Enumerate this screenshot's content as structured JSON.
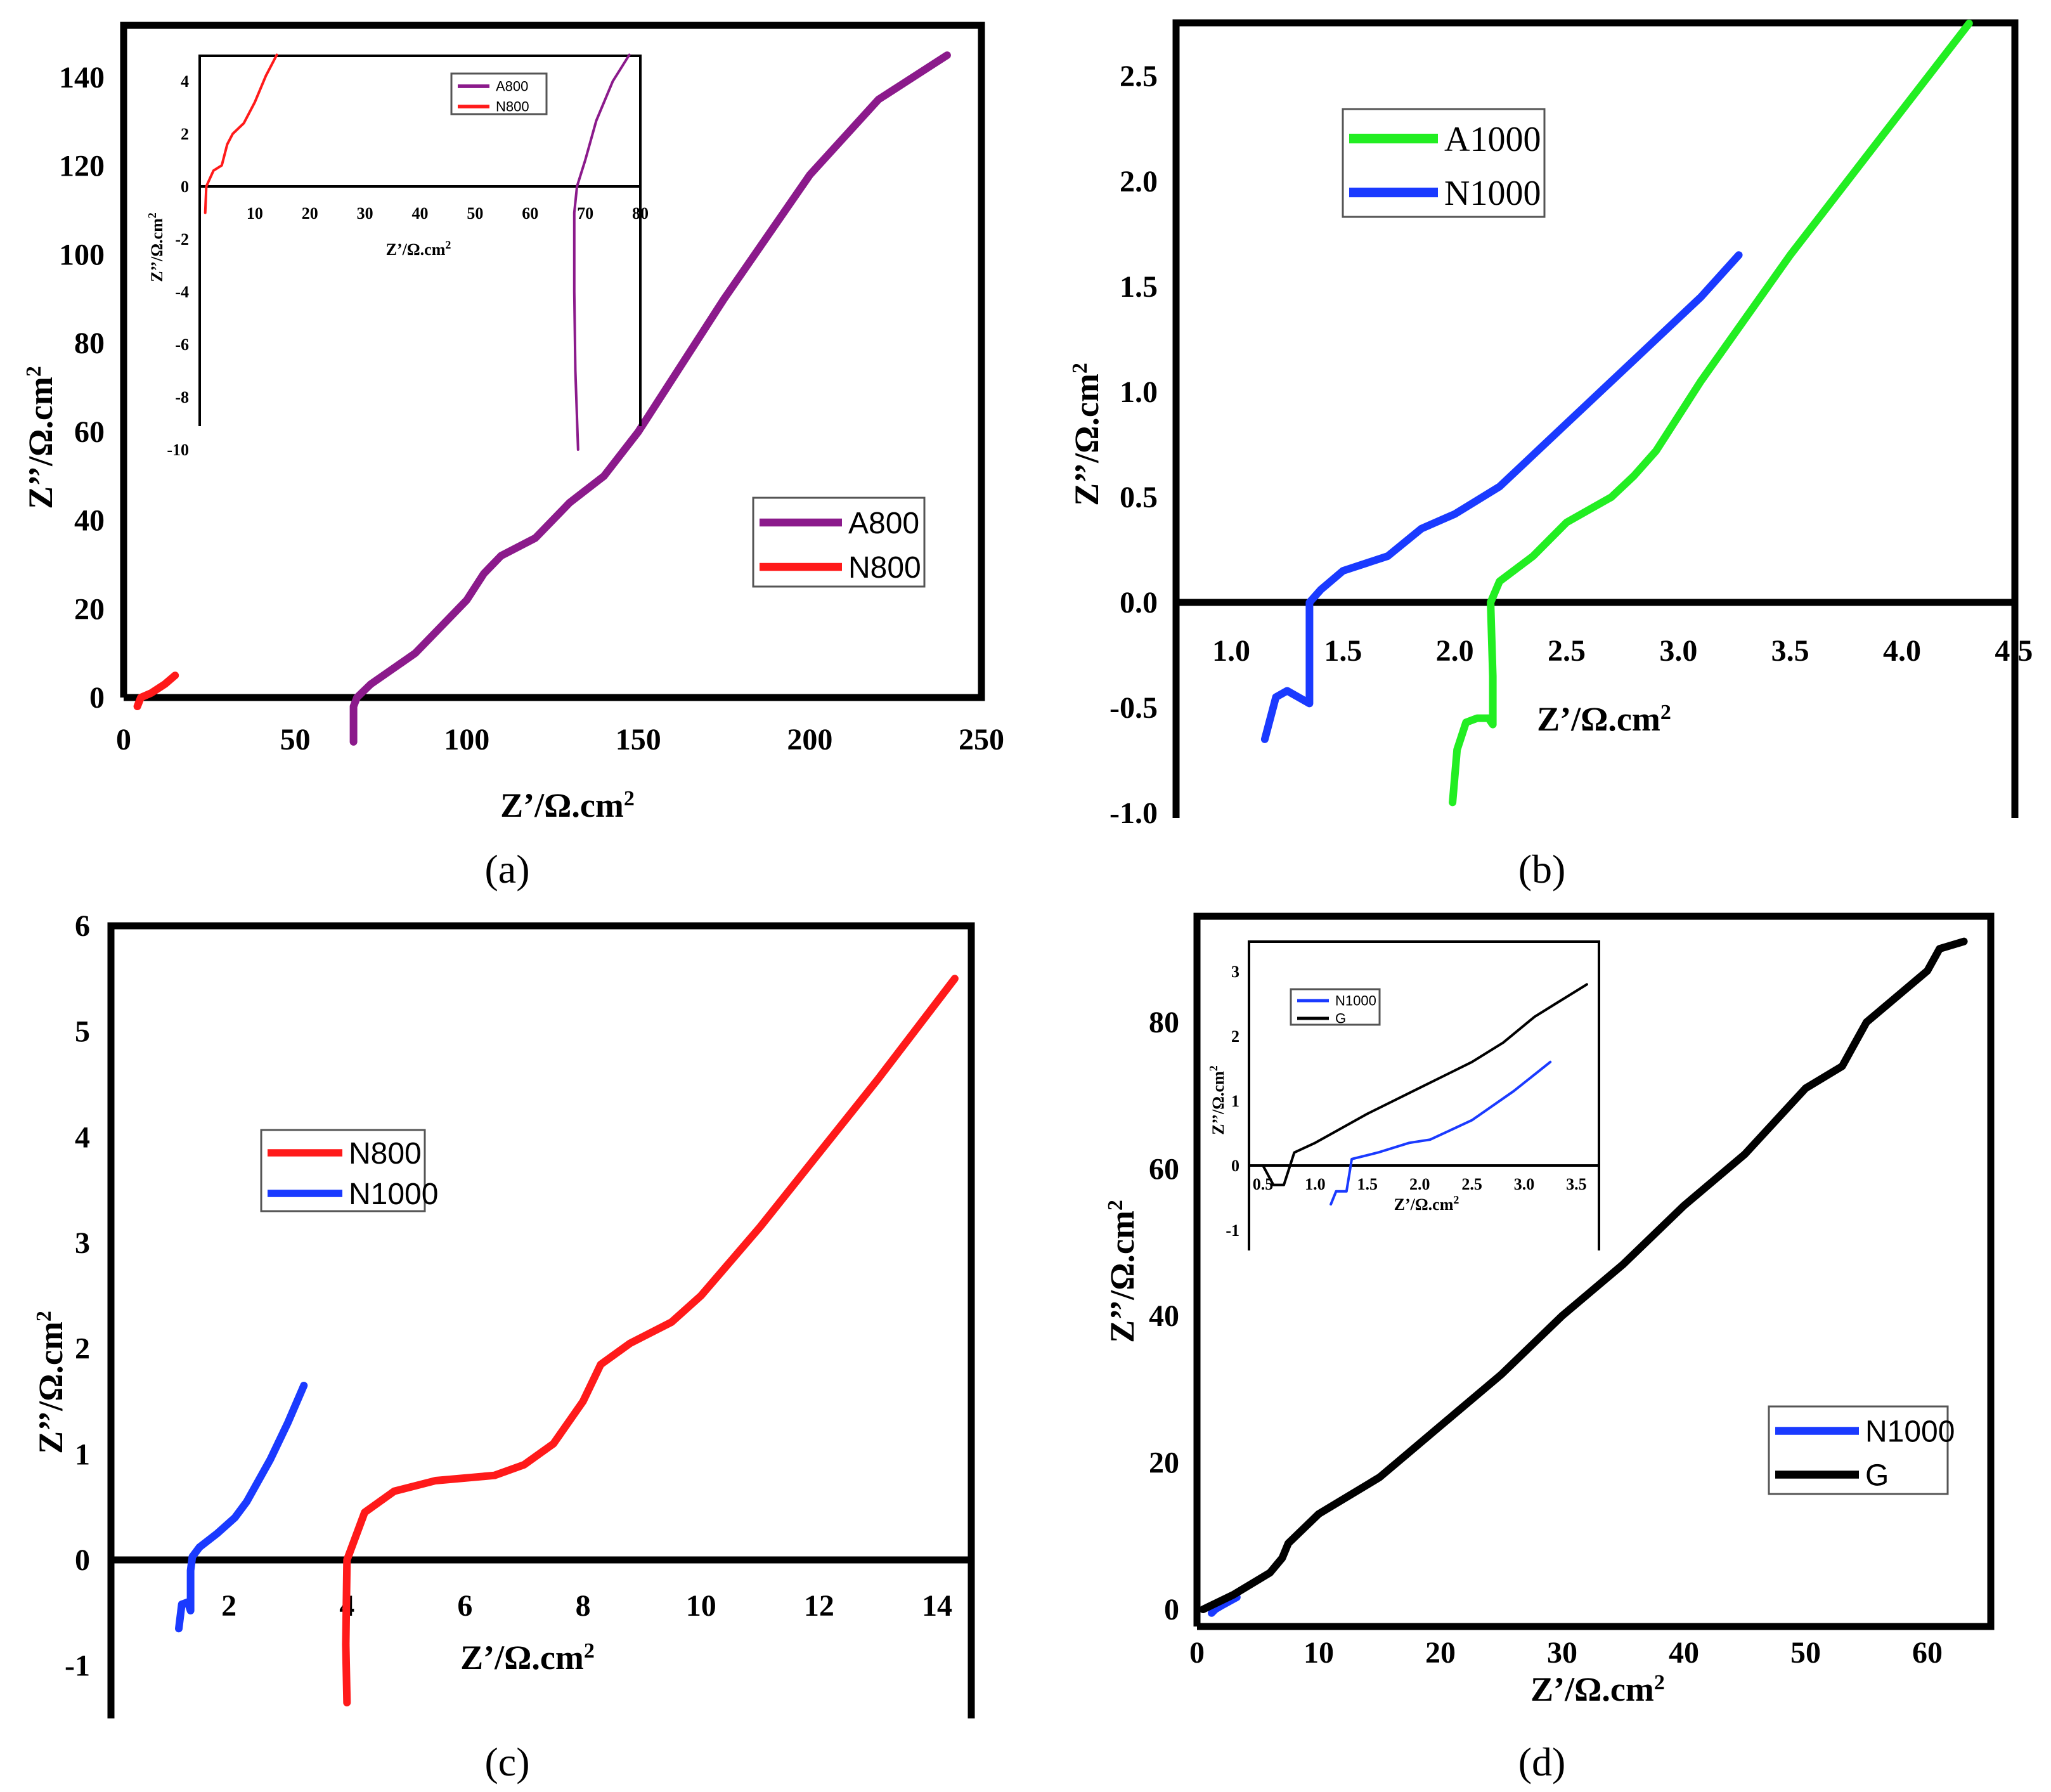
{
  "chart_data": [
    {
      "id": "a",
      "type": "line",
      "panel_label": "(a)",
      "xlabel": "Z’/Ω.cm",
      "ylabel": "Z’’/Ω.cm",
      "unit_exponent": "2",
      "xlim": [
        0,
        250
      ],
      "ylim": [
        0,
        145
      ],
      "x_ticks": [
        "0",
        "50",
        "100",
        "150",
        "200",
        "250"
      ],
      "y_ticks": [
        "0",
        "20",
        "40",
        "60",
        "80",
        "100",
        "120",
        "140"
      ],
      "legend": [
        "A800",
        "N800"
      ],
      "series": [
        {
          "name": "A800",
          "color": "#8b1a8b",
          "points": [
            [
              67,
              -10
            ],
            [
              67,
              -2
            ],
            [
              68,
              0
            ],
            [
              72,
              3
            ],
            [
              85,
              10
            ],
            [
              95,
              18
            ],
            [
              100,
              22
            ],
            [
              105,
              28
            ],
            [
              110,
              32
            ],
            [
              120,
              36
            ],
            [
              130,
              44
            ],
            [
              140,
              50
            ],
            [
              150,
              60
            ],
            [
              175,
              90
            ],
            [
              200,
              118
            ],
            [
              220,
              135
            ],
            [
              240,
              145
            ]
          ]
        },
        {
          "name": "N800",
          "color": "#ff1a1a",
          "points": [
            [
              4,
              -2
            ],
            [
              5,
              0
            ],
            [
              8,
              1
            ],
            [
              12,
              3
            ],
            [
              15,
              5
            ]
          ]
        }
      ],
      "inset": {
        "xlabel": "Z’/Ω.cm",
        "ylabel": "Z’’/Ω.cm",
        "xlim": [
          0,
          80
        ],
        "ylim": [
          -10,
          5
        ],
        "x_ticks": [
          "10",
          "20",
          "30",
          "40",
          "50",
          "60",
          "70",
          "80"
        ],
        "y_ticks": [
          "4",
          "2",
          "0",
          "-2",
          "-4",
          "-6",
          "-8",
          "-10"
        ],
        "legend": [
          "A800",
          "N800"
        ],
        "series": [
          {
            "name": "A800",
            "color": "#8b1a8b",
            "points": [
              [
                68.7,
                -10
              ],
              [
                68.2,
                -7
              ],
              [
                68,
                -4
              ],
              [
                68,
                -2
              ],
              [
                68,
                -1
              ],
              [
                68.5,
                0
              ],
              [
                70,
                1
              ],
              [
                72,
                2.5
              ],
              [
                75,
                4
              ],
              [
                78,
                5
              ]
            ]
          },
          {
            "name": "N800",
            "color": "#ff1a1a",
            "points": [
              [
                1,
                -1
              ],
              [
                1.2,
                0
              ],
              [
                2.5,
                0.6
              ],
              [
                4,
                0.8
              ],
              [
                5,
                1.6
              ],
              [
                6,
                2
              ],
              [
                8,
                2.4
              ],
              [
                10,
                3.2
              ],
              [
                12,
                4.2
              ],
              [
                14,
                5
              ]
            ]
          }
        ]
      }
    },
    {
      "id": "b",
      "type": "line",
      "panel_label": "(b)",
      "xlabel": "Z’/Ω.cm",
      "ylabel": "Z’’/Ω.cm",
      "unit_exponent": "2",
      "xlim": [
        0.75,
        4.5
      ],
      "ylim": [
        -1.0,
        2.75
      ],
      "x_ticks": [
        "1.0",
        "1.5",
        "2.0",
        "2.5",
        "3.0",
        "3.5",
        "4.0",
        "4.5"
      ],
      "y_ticks": [
        "-1.0",
        "-0.5",
        "0.0",
        "0.5",
        "1.0",
        "1.5",
        "2.0",
        "2.5"
      ],
      "legend": [
        "A1000",
        "N1000"
      ],
      "series": [
        {
          "name": "A1000",
          "color": "#22ee22",
          "points": [
            [
              1.99,
              -0.95
            ],
            [
              2.01,
              -0.7
            ],
            [
              2.05,
              -0.57
            ],
            [
              2.1,
              -0.55
            ],
            [
              2.15,
              -0.55
            ],
            [
              2.17,
              -0.58
            ],
            [
              2.17,
              -0.35
            ],
            [
              2.16,
              0.0
            ],
            [
              2.2,
              0.1
            ],
            [
              2.35,
              0.22
            ],
            [
              2.5,
              0.38
            ],
            [
              2.7,
              0.5
            ],
            [
              2.8,
              0.6
            ],
            [
              2.9,
              0.72
            ],
            [
              3.1,
              1.05
            ],
            [
              3.5,
              1.65
            ],
            [
              3.9,
              2.2
            ],
            [
              4.3,
              2.75
            ]
          ]
        },
        {
          "name": "N1000",
          "color": "#1a3aff",
          "points": [
            [
              1.15,
              -0.65
            ],
            [
              1.2,
              -0.45
            ],
            [
              1.25,
              -0.42
            ],
            [
              1.3,
              -0.45
            ],
            [
              1.35,
              -0.48
            ],
            [
              1.35,
              -0.2
            ],
            [
              1.35,
              0.0
            ],
            [
              1.4,
              0.06
            ],
            [
              1.5,
              0.15
            ],
            [
              1.7,
              0.22
            ],
            [
              1.85,
              0.35
            ],
            [
              2.0,
              0.42
            ],
            [
              2.2,
              0.55
            ],
            [
              2.5,
              0.85
            ],
            [
              2.8,
              1.15
            ],
            [
              3.1,
              1.45
            ],
            [
              3.27,
              1.65
            ]
          ]
        }
      ]
    },
    {
      "id": "c",
      "type": "line",
      "panel_label": "(c)",
      "xlabel": "Z’/Ω.cm",
      "ylabel": "Z’’/Ω.cm",
      "unit_exponent": "2",
      "xlim": [
        0,
        15
      ],
      "ylim": [
        -1.4,
        6.0
      ],
      "x_ticks": [
        "2",
        "4",
        "6",
        "8",
        "10",
        "12",
        "14"
      ],
      "y_ticks": [
        "-1",
        "0",
        "1",
        "2",
        "3",
        "4",
        "5",
        "6"
      ],
      "legend": [
        "N800",
        "N1000"
      ],
      "series": [
        {
          "name": "N800",
          "color": "#ff1a1a",
          "points": [
            [
              4.0,
              -1.35
            ],
            [
              3.98,
              -0.8
            ],
            [
              4.0,
              0.0
            ],
            [
              4.3,
              0.45
            ],
            [
              4.8,
              0.65
            ],
            [
              5.5,
              0.75
            ],
            [
              6.5,
              0.8
            ],
            [
              7.0,
              0.9
            ],
            [
              7.5,
              1.1
            ],
            [
              8.0,
              1.5
            ],
            [
              8.3,
              1.85
            ],
            [
              8.8,
              2.05
            ],
            [
              9.5,
              2.25
            ],
            [
              10.0,
              2.5
            ],
            [
              11.0,
              3.15
            ],
            [
              12.0,
              3.85
            ],
            [
              13.0,
              4.55
            ],
            [
              14.3,
              5.5
            ]
          ]
        },
        {
          "name": "N1000",
          "color": "#1a3aff",
          "points": [
            [
              1.15,
              -0.65
            ],
            [
              1.2,
              -0.42
            ],
            [
              1.3,
              -0.4
            ],
            [
              1.35,
              -0.48
            ],
            [
              1.35,
              -0.1
            ],
            [
              1.38,
              0.03
            ],
            [
              1.5,
              0.12
            ],
            [
              1.8,
              0.25
            ],
            [
              2.1,
              0.4
            ],
            [
              2.3,
              0.55
            ],
            [
              2.7,
              0.95
            ],
            [
              3.0,
              1.3
            ],
            [
              3.27,
              1.65
            ]
          ]
        }
      ]
    },
    {
      "id": "d",
      "type": "line",
      "panel_label": "(d)",
      "xlabel": "Z’/Ω.cm",
      "ylabel": "Z’’/Ω.cm",
      "unit_exponent": "2",
      "xlim": [
        0,
        65
      ],
      "ylim": [
        0,
        92
      ],
      "x_ticks": [
        "0",
        "10",
        "20",
        "30",
        "40",
        "50",
        "60"
      ],
      "y_ticks": [
        "0",
        "20",
        "40",
        "60",
        "80"
      ],
      "legend": [
        "N1000",
        "G"
      ],
      "series": [
        {
          "name": "N1000",
          "color": "#1a3aff",
          "points": [
            [
              1.2,
              -0.5
            ],
            [
              1.5,
              0
            ],
            [
              2.0,
              0.5
            ],
            [
              3.27,
              1.65
            ]
          ]
        },
        {
          "name": "G",
          "color": "#000000",
          "points": [
            [
              0.5,
              0
            ],
            [
              3,
              2
            ],
            [
              6,
              5
            ],
            [
              7,
              7
            ],
            [
              7.5,
              9
            ],
            [
              10,
              13
            ],
            [
              15,
              18
            ],
            [
              20,
              25
            ],
            [
              25,
              32
            ],
            [
              30,
              40
            ],
            [
              35,
              47
            ],
            [
              40,
              55
            ],
            [
              45,
              62
            ],
            [
              50,
              71
            ],
            [
              53,
              74
            ],
            [
              54,
              77
            ],
            [
              55,
              80
            ],
            [
              60,
              87
            ],
            [
              61,
              90
            ],
            [
              63,
              91
            ]
          ]
        }
      ],
      "inset": {
        "xlabel": "Z’/Ω.cm",
        "ylabel": "Z’’/Ω.cm",
        "xlim": [
          0.45,
          3.65
        ],
        "ylim": [
          -1.5,
          3.3
        ],
        "x_ticks": [
          "0.5",
          "1.0",
          "1.5",
          "2.0",
          "2.5",
          "3.0",
          "3.5"
        ],
        "y_ticks": [
          "3",
          "2",
          "1",
          "0",
          "-1"
        ],
        "legend": [
          "N1000",
          "G"
        ],
        "series": [
          {
            "name": "N1000",
            "color": "#1a3aff",
            "points": [
              [
                1.15,
                -0.6
              ],
              [
                1.2,
                -0.4
              ],
              [
                1.3,
                -0.4
              ],
              [
                1.33,
                -0.1
              ],
              [
                1.35,
                0.1
              ],
              [
                1.6,
                0.2
              ],
              [
                1.9,
                0.35
              ],
              [
                2.1,
                0.4
              ],
              [
                2.5,
                0.7
              ],
              [
                2.9,
                1.15
              ],
              [
                3.25,
                1.6
              ]
            ]
          },
          {
            "name": "G",
            "color": "#000000",
            "points": [
              [
                0.5,
                0
              ],
              [
                0.6,
                -0.3
              ],
              [
                0.7,
                -0.3
              ],
              [
                0.75,
                -0.05
              ],
              [
                0.8,
                0.2
              ],
              [
                1.0,
                0.35
              ],
              [
                1.5,
                0.8
              ],
              [
                2.0,
                1.2
              ],
              [
                2.5,
                1.6
              ],
              [
                2.8,
                1.9
              ],
              [
                3.1,
                2.3
              ],
              [
                3.3,
                2.5
              ],
              [
                3.6,
                2.8
              ]
            ]
          }
        ]
      }
    }
  ]
}
